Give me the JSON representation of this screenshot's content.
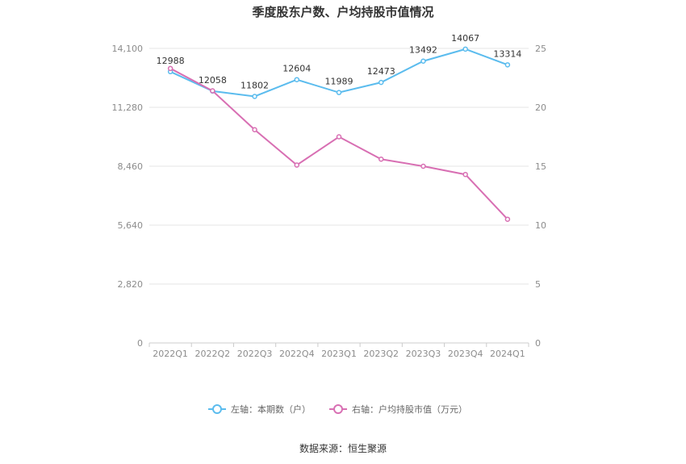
{
  "title": "季度股东户数、户均持股市值情况",
  "source_text": "数据来源：恒生聚源",
  "colors": {
    "left_series": "#5bbcee",
    "right_series": "#d86fb3",
    "grid": "#e6e6e6",
    "axis": "#cccccc"
  },
  "chart_data": {
    "type": "line",
    "title": "季度股东户数、户均持股市值情况",
    "categories": [
      "2022Q1",
      "2022Q2",
      "2022Q3",
      "2022Q4",
      "2023Q1",
      "2023Q2",
      "2023Q3",
      "2023Q4",
      "2024Q1"
    ],
    "left_axis": {
      "ylim": [
        0,
        14100
      ],
      "ticks": [
        "0",
        "2,820",
        "5,640",
        "8,460",
        "11,280",
        "14,100"
      ],
      "tick_values": [
        0,
        2820,
        5640,
        8460,
        11280,
        14100
      ]
    },
    "right_axis": {
      "ylim": [
        0,
        25
      ],
      "ticks": [
        "0",
        "5",
        "10",
        "15",
        "20",
        "25"
      ],
      "tick_values": [
        0,
        5,
        10,
        15,
        20,
        25
      ]
    },
    "series": [
      {
        "name": "左轴：本期数（户）",
        "axis": "left",
        "values": [
          12988,
          12058,
          11802,
          12604,
          11989,
          12473,
          13492,
          14067,
          13314
        ],
        "labels": [
          "12988",
          "12058",
          "11802",
          "12604",
          "11989",
          "12473",
          "13492",
          "14067",
          "13314"
        ]
      },
      {
        "name": "右轴：户均持股市值（万元）",
        "axis": "right",
        "values": [
          23.3,
          21.4,
          18.1,
          15.1,
          17.5,
          15.6,
          15.0,
          14.3,
          10.5
        ]
      }
    ],
    "grid": true,
    "legend_position": "bottom"
  }
}
